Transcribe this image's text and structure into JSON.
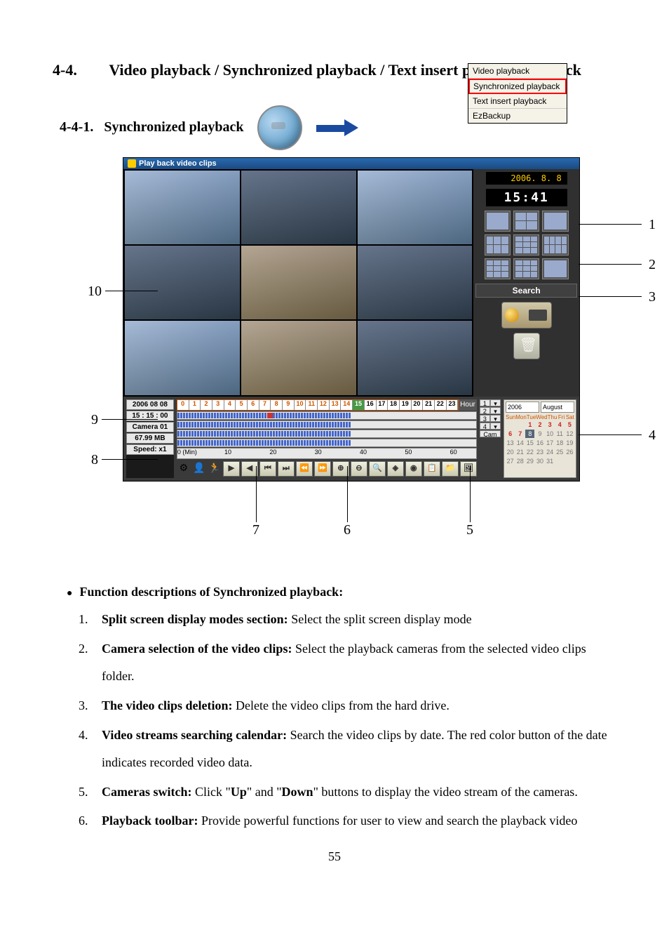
{
  "heading": {
    "number": "4-4.",
    "title": "Video playback / Synchronized playback / Text insert playback / ezBack"
  },
  "subheading": {
    "number": "4-4-1.",
    "title": "Synchronized playback"
  },
  "context_menu": {
    "items": [
      "Video playback",
      "Synchronized playback",
      "Text insert playback",
      "EzBackup"
    ],
    "selected_index": 1
  },
  "screenshot": {
    "window_title": "Play back video clips",
    "date_display": "2006. 8. 8",
    "time_display": "15:41",
    "search_label": "Search",
    "info_box": {
      "date": "2006  08  08",
      "time": "15 : 15 : 00",
      "camera": "Camera 01",
      "size": "67.99 MB",
      "speed": "Speed: x1"
    },
    "hour_ruler": {
      "hours": [
        "0",
        "1",
        "2",
        "3",
        "4",
        "5",
        "6",
        "7",
        "8",
        "9",
        "10",
        "11",
        "12",
        "13",
        "14",
        "15",
        "16",
        "17",
        "18",
        "19",
        "20",
        "21",
        "22",
        "23"
      ],
      "active_upto_index": 15,
      "highlight_index": 15,
      "label": "Hour"
    },
    "cam_spinner": {
      "rows": [
        "1",
        "2",
        "3",
        "4"
      ],
      "label": "Cam"
    },
    "minute_ruler": {
      "left_label": "0 (Min)",
      "ticks": [
        "10",
        "20",
        "30",
        "40",
        "50",
        "60"
      ]
    },
    "calendar": {
      "year": "2006",
      "month": "August",
      "dow": [
        "Sun",
        "Mon",
        "Tue",
        "Wed",
        "Thu",
        "Fri",
        "Sat"
      ],
      "days": [
        "",
        "",
        "1",
        "2",
        "3",
        "4",
        "5",
        "6",
        "7",
        "8",
        "9",
        "10",
        "11",
        "12",
        "13",
        "14",
        "15",
        "16",
        "17",
        "18",
        "19",
        "20",
        "21",
        "22",
        "23",
        "24",
        "25",
        "26",
        "27",
        "28",
        "29",
        "30",
        "31",
        "",
        ""
      ],
      "recorded_days": [
        "1",
        "2",
        "3",
        "4",
        "5",
        "6",
        "7"
      ],
      "today": "8"
    },
    "toolbar_buttons": [
      "▶",
      "◀",
      "⏮",
      "⏭",
      "⏪",
      "⏩",
      "⊕",
      "⊖",
      "🔍",
      "◈",
      "◉",
      "📋",
      "📁",
      "🖼"
    ]
  },
  "annotations": {
    "l1": "1",
    "l2": "2",
    "l3": "3",
    "l4": "4",
    "l5": "5",
    "l6": "6",
    "l7": "7",
    "l8": "8",
    "l9": "9",
    "l10": "10"
  },
  "descriptions": {
    "bullet_heading": "Function descriptions of Synchronized playback:",
    "items": [
      {
        "n": "1.",
        "bold": "Split screen display modes section:",
        "rest": " Select the split screen display mode"
      },
      {
        "n": "2.",
        "bold": "Camera selection of the video clips:",
        "rest": " Select the playback cameras from the selected video clips folder."
      },
      {
        "n": "3.",
        "bold": "The video clips deletion:",
        "rest": " Delete the video clips from the hard drive."
      },
      {
        "n": "4.",
        "bold": "Video streams searching calendar:",
        "rest": " Search the video clips by date. The red color button of the date indicates recorded video data."
      },
      {
        "n": "5.",
        "bold": "Cameras switch:",
        "rest": " Click \"",
        "bold2": "Up",
        "mid": "\" and \"",
        "bold3": "Down",
        "rest2": "\" buttons to display the video stream of the cameras."
      },
      {
        "n": "6.",
        "bold": "Playback toolbar:",
        "rest": " Provide powerful functions for user to view and search the playback video"
      }
    ]
  },
  "page_number": "55"
}
